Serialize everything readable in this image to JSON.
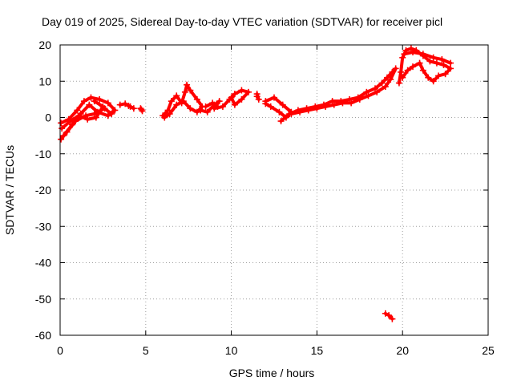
{
  "chart_data": {
    "type": "scatter",
    "title": "Day 019 of 2025, Sidereal Day-to-day VTEC variation (SDTVAR) for receiver picl",
    "xlabel": "GPS time / hours",
    "ylabel": "SDTVAR / TECUs",
    "xlim": [
      0,
      25
    ],
    "ylim": [
      -60,
      20
    ],
    "xticks": [
      0,
      5,
      10,
      15,
      20,
      25
    ],
    "yticks": [
      20,
      10,
      0,
      -10,
      -20,
      -30,
      -40,
      -50,
      -60
    ],
    "grid": true,
    "series_color": "#ff0000",
    "marker": "plus",
    "segments": [
      [
        [
          0.05,
          -1.5
        ],
        [
          0.5,
          -0.5
        ],
        [
          1.0,
          2.0
        ],
        [
          1.4,
          4.5
        ],
        [
          1.8,
          5.5
        ],
        [
          2.3,
          5.0
        ],
        [
          2.8,
          4.0
        ],
        [
          3.2,
          2.0
        ],
        [
          2.8,
          0.5
        ],
        [
          2.2,
          1.5
        ],
        [
          1.7,
          3.5
        ],
        [
          1.2,
          1.0
        ],
        [
          0.7,
          -2.0
        ],
        [
          0.2,
          -5.0
        ],
        [
          0.05,
          -6.0
        ],
        [
          0.4,
          -4.0
        ],
        [
          0.9,
          -1.0
        ],
        [
          1.5,
          0.5
        ],
        [
          2.0,
          1.0
        ],
        [
          2.6,
          2.5
        ],
        [
          3.0,
          1.0
        ]
      ],
      [
        [
          0.1,
          -3.0
        ],
        [
          0.6,
          -1.0
        ],
        [
          1.1,
          0.5
        ],
        [
          1.6,
          -0.5
        ],
        [
          2.1,
          0.0
        ],
        [
          2.5,
          3.0
        ],
        [
          2.0,
          4.5
        ]
      ],
      [
        [
          3.5,
          3.5
        ],
        [
          3.8,
          3.8
        ],
        [
          4.1,
          3.0
        ],
        [
          4.3,
          2.5
        ],
        [
          4.0,
          3.2
        ]
      ],
      [
        [
          4.7,
          2.5
        ],
        [
          4.8,
          1.8
        ],
        [
          4.75,
          2.2
        ]
      ],
      [
        [
          6.0,
          0.5
        ],
        [
          6.3,
          2.0
        ],
        [
          6.5,
          4.5
        ],
        [
          6.8,
          6.0
        ],
        [
          7.1,
          4.0
        ],
        [
          7.3,
          7.0
        ],
        [
          7.4,
          9.0
        ],
        [
          7.6,
          7.5
        ],
        [
          8.0,
          5.0
        ],
        [
          8.3,
          3.0
        ],
        [
          8.0,
          1.5
        ],
        [
          7.6,
          2.5
        ],
        [
          7.2,
          4.5
        ],
        [
          6.8,
          3.5
        ],
        [
          6.4,
          1.0
        ],
        [
          6.1,
          0.0
        ]
      ],
      [
        [
          8.2,
          2.0
        ],
        [
          8.6,
          1.5
        ],
        [
          9.0,
          3.5
        ],
        [
          9.3,
          4.5
        ],
        [
          9.0,
          2.5
        ],
        [
          9.5,
          3.0
        ],
        [
          9.9,
          5.0
        ],
        [
          10.2,
          6.5
        ],
        [
          10.6,
          7.5
        ],
        [
          11.0,
          7.0
        ],
        [
          10.6,
          5.0
        ],
        [
          10.2,
          3.5
        ],
        [
          10.0,
          5.5
        ]
      ],
      [
        [
          8.5,
          3.0
        ],
        [
          8.9,
          4.0
        ],
        [
          9.2,
          3.0
        ]
      ],
      [
        [
          11.5,
          6.5
        ],
        [
          11.6,
          5.0
        ],
        [
          11.5,
          5.8
        ]
      ],
      [
        [
          12.0,
          4.5
        ],
        [
          12.5,
          5.5
        ],
        [
          13.0,
          3.5
        ],
        [
          13.5,
          1.5
        ],
        [
          13.2,
          0.0
        ],
        [
          12.8,
          1.5
        ],
        [
          12.3,
          3.0
        ],
        [
          12.0,
          3.8
        ]
      ],
      [
        [
          12.9,
          -1.0
        ],
        [
          13.4,
          1.0
        ],
        [
          13.9,
          2.0
        ],
        [
          14.4,
          2.5
        ],
        [
          14.9,
          3.0
        ],
        [
          15.4,
          3.5
        ],
        [
          15.9,
          4.5
        ],
        [
          16.4,
          4.5
        ],
        [
          16.9,
          5.0
        ],
        [
          17.4,
          5.5
        ],
        [
          17.9,
          7.0
        ],
        [
          18.4,
          8.0
        ],
        [
          18.8,
          9.5
        ],
        [
          19.1,
          11.0
        ],
        [
          19.4,
          12.5
        ],
        [
          19.6,
          13.5
        ],
        [
          19.3,
          10.5
        ],
        [
          19.0,
          8.5
        ],
        [
          18.5,
          7.0
        ],
        [
          18.0,
          6.0
        ],
        [
          17.5,
          5.0
        ],
        [
          17.0,
          4.0
        ],
        [
          16.5,
          4.0
        ],
        [
          16.0,
          3.5
        ],
        [
          15.5,
          3.0
        ],
        [
          15.0,
          2.5
        ],
        [
          14.5,
          2.0
        ],
        [
          14.0,
          1.5
        ],
        [
          13.5,
          1.0
        ]
      ],
      [
        [
          19.8,
          9.5
        ],
        [
          19.9,
          12.5
        ],
        [
          20.0,
          16.5
        ],
        [
          20.2,
          18.5
        ],
        [
          20.5,
          19.0
        ],
        [
          20.8,
          18.5
        ],
        [
          21.2,
          17.0
        ],
        [
          21.6,
          15.5
        ],
        [
          22.0,
          15.0
        ],
        [
          22.4,
          14.5
        ],
        [
          22.8,
          13.5
        ],
        [
          22.5,
          12.0
        ],
        [
          22.1,
          11.5
        ],
        [
          21.8,
          10.0
        ],
        [
          21.5,
          11.0
        ],
        [
          21.2,
          13.0
        ],
        [
          21.0,
          15.0
        ],
        [
          20.6,
          14.0
        ],
        [
          20.3,
          13.0
        ],
        [
          20.0,
          11.0
        ]
      ],
      [
        [
          20.1,
          17.5
        ],
        [
          20.6,
          18.0
        ],
        [
          21.2,
          17.5
        ],
        [
          21.8,
          16.5
        ],
        [
          22.3,
          16.0
        ],
        [
          22.8,
          15.0
        ]
      ],
      [
        [
          19.0,
          -54.0
        ],
        [
          19.2,
          -54.5
        ],
        [
          19.4,
          -55.5
        ]
      ]
    ]
  }
}
